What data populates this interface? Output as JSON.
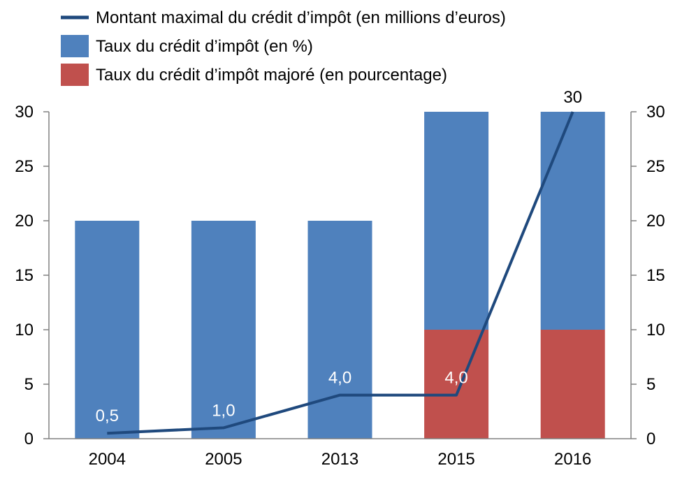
{
  "chart_data": {
    "type": "bar",
    "categories": [
      "2004",
      "2005",
      "2013",
      "2015",
      "2016"
    ],
    "series": [
      {
        "name": "Taux du crédit d’impôt (en %)",
        "kind": "stacked-bar",
        "color": "#4F81BD",
        "values": [
          20,
          20,
          20,
          20,
          20
        ]
      },
      {
        "name": "Taux du crédit d’impôt majoré (en pourcentage)",
        "kind": "stacked-bar",
        "color": "#C0504D",
        "values": [
          0,
          0,
          0,
          10,
          10
        ]
      },
      {
        "name": "Montant maximal du crédit d’impôt (en millions d’euros)",
        "kind": "line",
        "axis": "right",
        "color": "#1F497D",
        "values": [
          0.5,
          1.0,
          4.0,
          4.0,
          30
        ],
        "labels": [
          "0,5",
          "1,0",
          "4,0",
          "4,0",
          "30"
        ]
      }
    ],
    "ylim": [
      0,
      30
    ],
    "y2lim": [
      0,
      30
    ],
    "yticks": [
      "0",
      "5",
      "10",
      "15",
      "20",
      "25",
      "30"
    ],
    "y2ticks": [
      "0",
      "5",
      "10",
      "15",
      "20",
      "25",
      "30"
    ],
    "legend_position": "top-left",
    "grid": false
  }
}
